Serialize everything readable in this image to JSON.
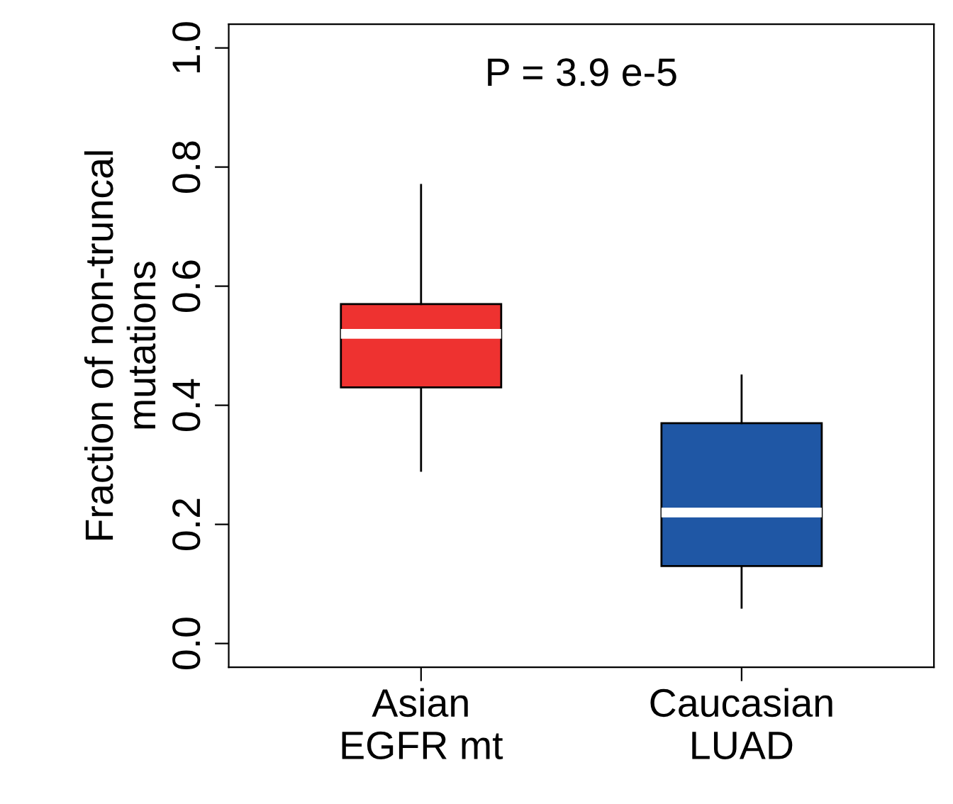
{
  "chart_data": {
    "type": "box",
    "categories": [
      "Asian\nEGFR mt",
      "Caucasian\nLUAD"
    ],
    "colors": [
      "#ee3230",
      "#1f57a5"
    ],
    "boxes": [
      {
        "low": 0.29,
        "q1": 0.43,
        "median": 0.52,
        "q3": 0.57,
        "high": 0.77
      },
      {
        "low": 0.06,
        "q1": 0.13,
        "median": 0.22,
        "q3": 0.37,
        "high": 0.45
      }
    ],
    "ylabel": "Fraction of non-truncal\nmutations",
    "ylim": [
      -0.04,
      1.04
    ],
    "yticks": [
      {
        "value": 0,
        "label": "0.0"
      },
      {
        "value": 0.2,
        "label": "0.2"
      },
      {
        "value": 0.4,
        "label": "0.4"
      },
      {
        "value": 0.6,
        "label": "0.6"
      },
      {
        "value": 0.8,
        "label": "0.8"
      },
      {
        "value": 1.0,
        "label": "1.0"
      }
    ],
    "annotations": [
      "P = 3.9 e-5"
    ],
    "grid": false
  }
}
